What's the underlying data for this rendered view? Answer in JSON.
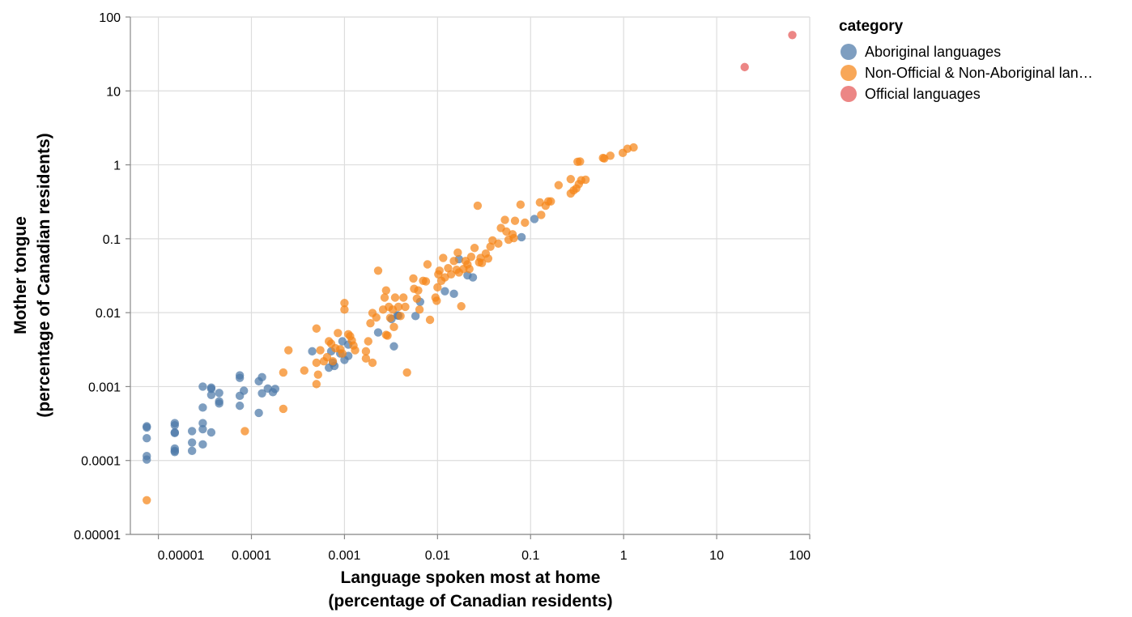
{
  "chart_data": {
    "type": "scatter",
    "xlabel": [
      "Language spoken most at home",
      "(percentage of Canadian residents)"
    ],
    "ylabel": [
      "Mother tongue",
      "(percentage of Canadian residents)"
    ],
    "x_scale": "log",
    "y_scale": "log",
    "xlim": [
      5e-06,
      100
    ],
    "ylim": [
      1e-05,
      100
    ],
    "x_ticks": [
      {
        "value": 1e-05,
        "label": "0.00001"
      },
      {
        "value": 0.0001,
        "label": "0.0001"
      },
      {
        "value": 0.001,
        "label": "0.001"
      },
      {
        "value": 0.01,
        "label": "0.01"
      },
      {
        "value": 0.1,
        "label": "0.1"
      },
      {
        "value": 1,
        "label": "1"
      },
      {
        "value": 10,
        "label": "10"
      },
      {
        "value": 100,
        "label": "100"
      }
    ],
    "y_ticks": [
      {
        "value": 1e-05,
        "label": "0.00001"
      },
      {
        "value": 0.0001,
        "label": "0.0001"
      },
      {
        "value": 0.001,
        "label": "0.001"
      },
      {
        "value": 0.01,
        "label": "0.01"
      },
      {
        "value": 0.1,
        "label": "0.1"
      },
      {
        "value": 1,
        "label": "1"
      },
      {
        "value": 10,
        "label": "10"
      },
      {
        "value": 100,
        "label": "100"
      }
    ],
    "grid": true,
    "legend": {
      "title": "category",
      "position": "right",
      "entries": [
        {
          "label": "Aboriginal languages",
          "color": "#4c78a8"
        },
        {
          "label": "Non-Official & Non-Aboriginal lan…",
          "color": "#f58518"
        },
        {
          "label": "Official languages",
          "color": "#e45756"
        }
      ]
    },
    "series": [
      {
        "name": "Aboriginal languages",
        "color": "#4c78a8",
        "points": [
          [
            7.5e-06,
            0.00029
          ],
          [
            7.5e-06,
            0.00028
          ],
          [
            7.5e-06,
            0.0002
          ],
          [
            7.5e-06,
            0.000115
          ],
          [
            7.5e-06,
            0.000103
          ],
          [
            1.5e-05,
            0.00032
          ],
          [
            1.5e-05,
            0.0003
          ],
          [
            1.5e-05,
            0.00024
          ],
          [
            1.5e-05,
            0.000235
          ],
          [
            1.5e-05,
            0.000145
          ],
          [
            1.5e-05,
            0.000135
          ],
          [
            1.5e-05,
            0.00013
          ],
          [
            2.3e-05,
            0.00025
          ],
          [
            2.3e-05,
            0.000175
          ],
          [
            2.3e-05,
            0.000135
          ],
          [
            3e-05,
            0.001
          ],
          [
            3e-05,
            0.00052
          ],
          [
            3e-05,
            0.00032
          ],
          [
            3e-05,
            0.000265
          ],
          [
            3e-05,
            0.000165
          ],
          [
            3.7e-05,
            0.00097
          ],
          [
            3.7e-05,
            0.00093
          ],
          [
            3.7e-05,
            0.00077
          ],
          [
            3.7e-05,
            0.00024
          ],
          [
            4.5e-05,
            0.00082
          ],
          [
            4.5e-05,
            0.00063
          ],
          [
            4.5e-05,
            0.00059
          ],
          [
            7.5e-05,
            0.00142
          ],
          [
            7.5e-05,
            0.00131
          ],
          [
            7.5e-05,
            0.00075
          ],
          [
            7.5e-05,
            0.00055
          ],
          [
            8.3e-05,
            0.00088
          ],
          [
            0.00012,
            0.00118
          ],
          [
            0.00012,
            0.00044
          ],
          [
            0.00013,
            0.00134
          ],
          [
            0.00013,
            0.00081
          ],
          [
            0.00015,
            0.00094
          ],
          [
            0.00017,
            0.00084
          ],
          [
            0.00018,
            0.00093
          ],
          [
            0.00045,
            0.003
          ],
          [
            0.00068,
            0.0018
          ],
          [
            0.00072,
            0.003
          ],
          [
            0.00075,
            0.0021
          ],
          [
            0.00078,
            0.0019
          ],
          [
            0.0009,
            0.0028
          ],
          [
            0.00095,
            0.0041
          ],
          [
            0.001,
            0.0023
          ],
          [
            0.0011,
            0.0026
          ],
          [
            0.0011,
            0.0037
          ],
          [
            0.0023,
            0.0054
          ],
          [
            0.0032,
            0.0082
          ],
          [
            0.0034,
            0.0035
          ],
          [
            0.0037,
            0.0092
          ],
          [
            0.0038,
            0.0091
          ],
          [
            0.0058,
            0.009
          ],
          [
            0.0065,
            0.014
          ],
          [
            0.012,
            0.0195
          ],
          [
            0.015,
            0.018
          ],
          [
            0.017,
            0.053
          ],
          [
            0.021,
            0.032
          ],
          [
            0.024,
            0.03
          ],
          [
            0.08,
            0.105
          ],
          [
            0.11,
            0.185
          ]
        ]
      },
      {
        "name": "Non-Official & Non-Aboriginal lan…",
        "color": "#f58518",
        "points": [
          [
            7.5e-06,
            2.9e-05
          ],
          [
            8.5e-05,
            0.00025
          ],
          [
            0.00022,
            0.0005
          ],
          [
            0.00022,
            0.00155
          ],
          [
            0.00025,
            0.0031
          ],
          [
            0.00037,
            0.00165
          ],
          [
            0.0005,
            0.0061
          ],
          [
            0.0005,
            0.0021
          ],
          [
            0.0005,
            0.00108
          ],
          [
            0.00052,
            0.00145
          ],
          [
            0.00055,
            0.0031
          ],
          [
            0.0006,
            0.0022
          ],
          [
            0.00065,
            0.0025
          ],
          [
            0.00068,
            0.0041
          ],
          [
            0.00072,
            0.0038
          ],
          [
            0.00075,
            0.0022
          ],
          [
            0.0008,
            0.0033
          ],
          [
            0.00085,
            0.0053
          ],
          [
            0.0009,
            0.0032
          ],
          [
            0.00095,
            0.0028
          ],
          [
            0.001,
            0.0135
          ],
          [
            0.001,
            0.011
          ],
          [
            0.0011,
            0.0051
          ],
          [
            0.00115,
            0.0048
          ],
          [
            0.0012,
            0.0042
          ],
          [
            0.00125,
            0.0036
          ],
          [
            0.0013,
            0.0031
          ],
          [
            0.0017,
            0.003
          ],
          [
            0.0017,
            0.0024
          ],
          [
            0.0018,
            0.0041
          ],
          [
            0.0019,
            0.0072
          ],
          [
            0.002,
            0.0099
          ],
          [
            0.002,
            0.0021
          ],
          [
            0.0022,
            0.0086
          ],
          [
            0.0023,
            0.037
          ],
          [
            0.0026,
            0.011
          ],
          [
            0.0027,
            0.016
          ],
          [
            0.0028,
            0.02
          ],
          [
            0.0028,
            0.005
          ],
          [
            0.0029,
            0.0049
          ],
          [
            0.003,
            0.012
          ],
          [
            0.0031,
            0.0085
          ],
          [
            0.0033,
            0.011
          ],
          [
            0.0034,
            0.0064
          ],
          [
            0.0035,
            0.016
          ],
          [
            0.0038,
            0.012
          ],
          [
            0.004,
            0.009
          ],
          [
            0.0043,
            0.016
          ],
          [
            0.0045,
            0.012
          ],
          [
            0.0047,
            0.00155
          ],
          [
            0.0055,
            0.029
          ],
          [
            0.0056,
            0.021
          ],
          [
            0.006,
            0.0155
          ],
          [
            0.0062,
            0.02
          ],
          [
            0.0064,
            0.011
          ],
          [
            0.007,
            0.027
          ],
          [
            0.0075,
            0.0265
          ],
          [
            0.0078,
            0.045
          ],
          [
            0.0083,
            0.008
          ],
          [
            0.0095,
            0.016
          ],
          [
            0.0098,
            0.0145
          ],
          [
            0.01,
            0.022
          ],
          [
            0.0102,
            0.033
          ],
          [
            0.0105,
            0.037
          ],
          [
            0.011,
            0.027
          ],
          [
            0.0115,
            0.055
          ],
          [
            0.012,
            0.03
          ],
          [
            0.013,
            0.04
          ],
          [
            0.014,
            0.033
          ],
          [
            0.015,
            0.05
          ],
          [
            0.016,
            0.038
          ],
          [
            0.0165,
            0.065
          ],
          [
            0.017,
            0.035
          ],
          [
            0.018,
            0.0122
          ],
          [
            0.019,
            0.039
          ],
          [
            0.02,
            0.05
          ],
          [
            0.021,
            0.045
          ],
          [
            0.022,
            0.039
          ],
          [
            0.023,
            0.057
          ],
          [
            0.025,
            0.075
          ],
          [
            0.027,
            0.28
          ],
          [
            0.028,
            0.048
          ],
          [
            0.029,
            0.055
          ],
          [
            0.03,
            0.047
          ],
          [
            0.033,
            0.063
          ],
          [
            0.035,
            0.054
          ],
          [
            0.037,
            0.078
          ],
          [
            0.039,
            0.095
          ],
          [
            0.045,
            0.086
          ],
          [
            0.048,
            0.14
          ],
          [
            0.053,
            0.18
          ],
          [
            0.055,
            0.125
          ],
          [
            0.058,
            0.097
          ],
          [
            0.064,
            0.115
          ],
          [
            0.066,
            0.102
          ],
          [
            0.068,
            0.175
          ],
          [
            0.078,
            0.29
          ],
          [
            0.087,
            0.165
          ],
          [
            0.126,
            0.31
          ],
          [
            0.13,
            0.21
          ],
          [
            0.145,
            0.28
          ],
          [
            0.155,
            0.32
          ],
          [
            0.165,
            0.32
          ],
          [
            0.2,
            0.53
          ],
          [
            0.27,
            0.64
          ],
          [
            0.27,
            0.41
          ],
          [
            0.29,
            0.45
          ],
          [
            0.31,
            0.48
          ],
          [
            0.32,
            1.1
          ],
          [
            0.33,
            0.55
          ],
          [
            0.34,
            1.11
          ],
          [
            0.35,
            0.62
          ],
          [
            0.39,
            0.63
          ],
          [
            0.6,
            1.24
          ],
          [
            0.62,
            1.22
          ],
          [
            0.72,
            1.33
          ],
          [
            0.98,
            1.45
          ],
          [
            1.1,
            1.65
          ],
          [
            1.28,
            1.72
          ]
        ]
      },
      {
        "name": "Official languages",
        "color": "#e45756",
        "points": [
          [
            20.0,
            21.0
          ],
          [
            65.0,
            57.0
          ]
        ]
      }
    ]
  }
}
